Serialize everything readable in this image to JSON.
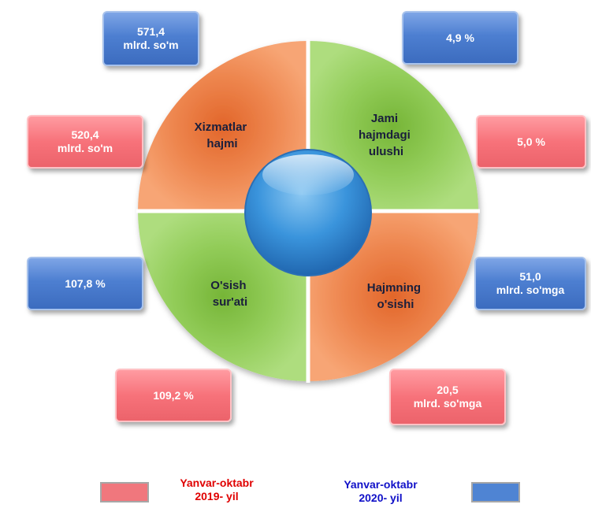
{
  "quadrants": {
    "top_left": "Xizmatlar hajmi",
    "top_right": "Jami hajmdagi ulushi",
    "bottom_left": "O'sish sur'ati",
    "bottom_right": "Hajmning o'sishi"
  },
  "values": {
    "services_2020": {
      "line1": "571,4",
      "line2": "mlrd. so'm"
    },
    "services_2019": {
      "line1": "520,4",
      "line2": "mlrd. so'm"
    },
    "share_2020": "4,9 %",
    "share_2019": "5,0 %",
    "growth_rate_2020": "107,8 %",
    "growth_rate_2019": "109,2 %",
    "volume_growth_2020": {
      "line1": "51,0",
      "line2": "mlrd. so'mga"
    },
    "volume_growth_2019": {
      "line1": "20,5",
      "line2": "mlrd. so'mga"
    }
  },
  "legend": {
    "period_2019": {
      "line1": "Yanvar-oktabr",
      "line2": "2019- yil"
    },
    "period_2020": {
      "line1": "Yanvar-oktabr",
      "line2": "2020- yil"
    }
  },
  "colors": {
    "period_2019": "#f0777d",
    "period_2020": "#4f84d3",
    "legend_text_2019": "#e00000",
    "legend_text_2020": "#1010c8",
    "orange_segment": "#ec8248",
    "green_segment": "#8cc850",
    "center_circle": "#2f86d0",
    "quadrant_text": "#1a1f3c"
  }
}
